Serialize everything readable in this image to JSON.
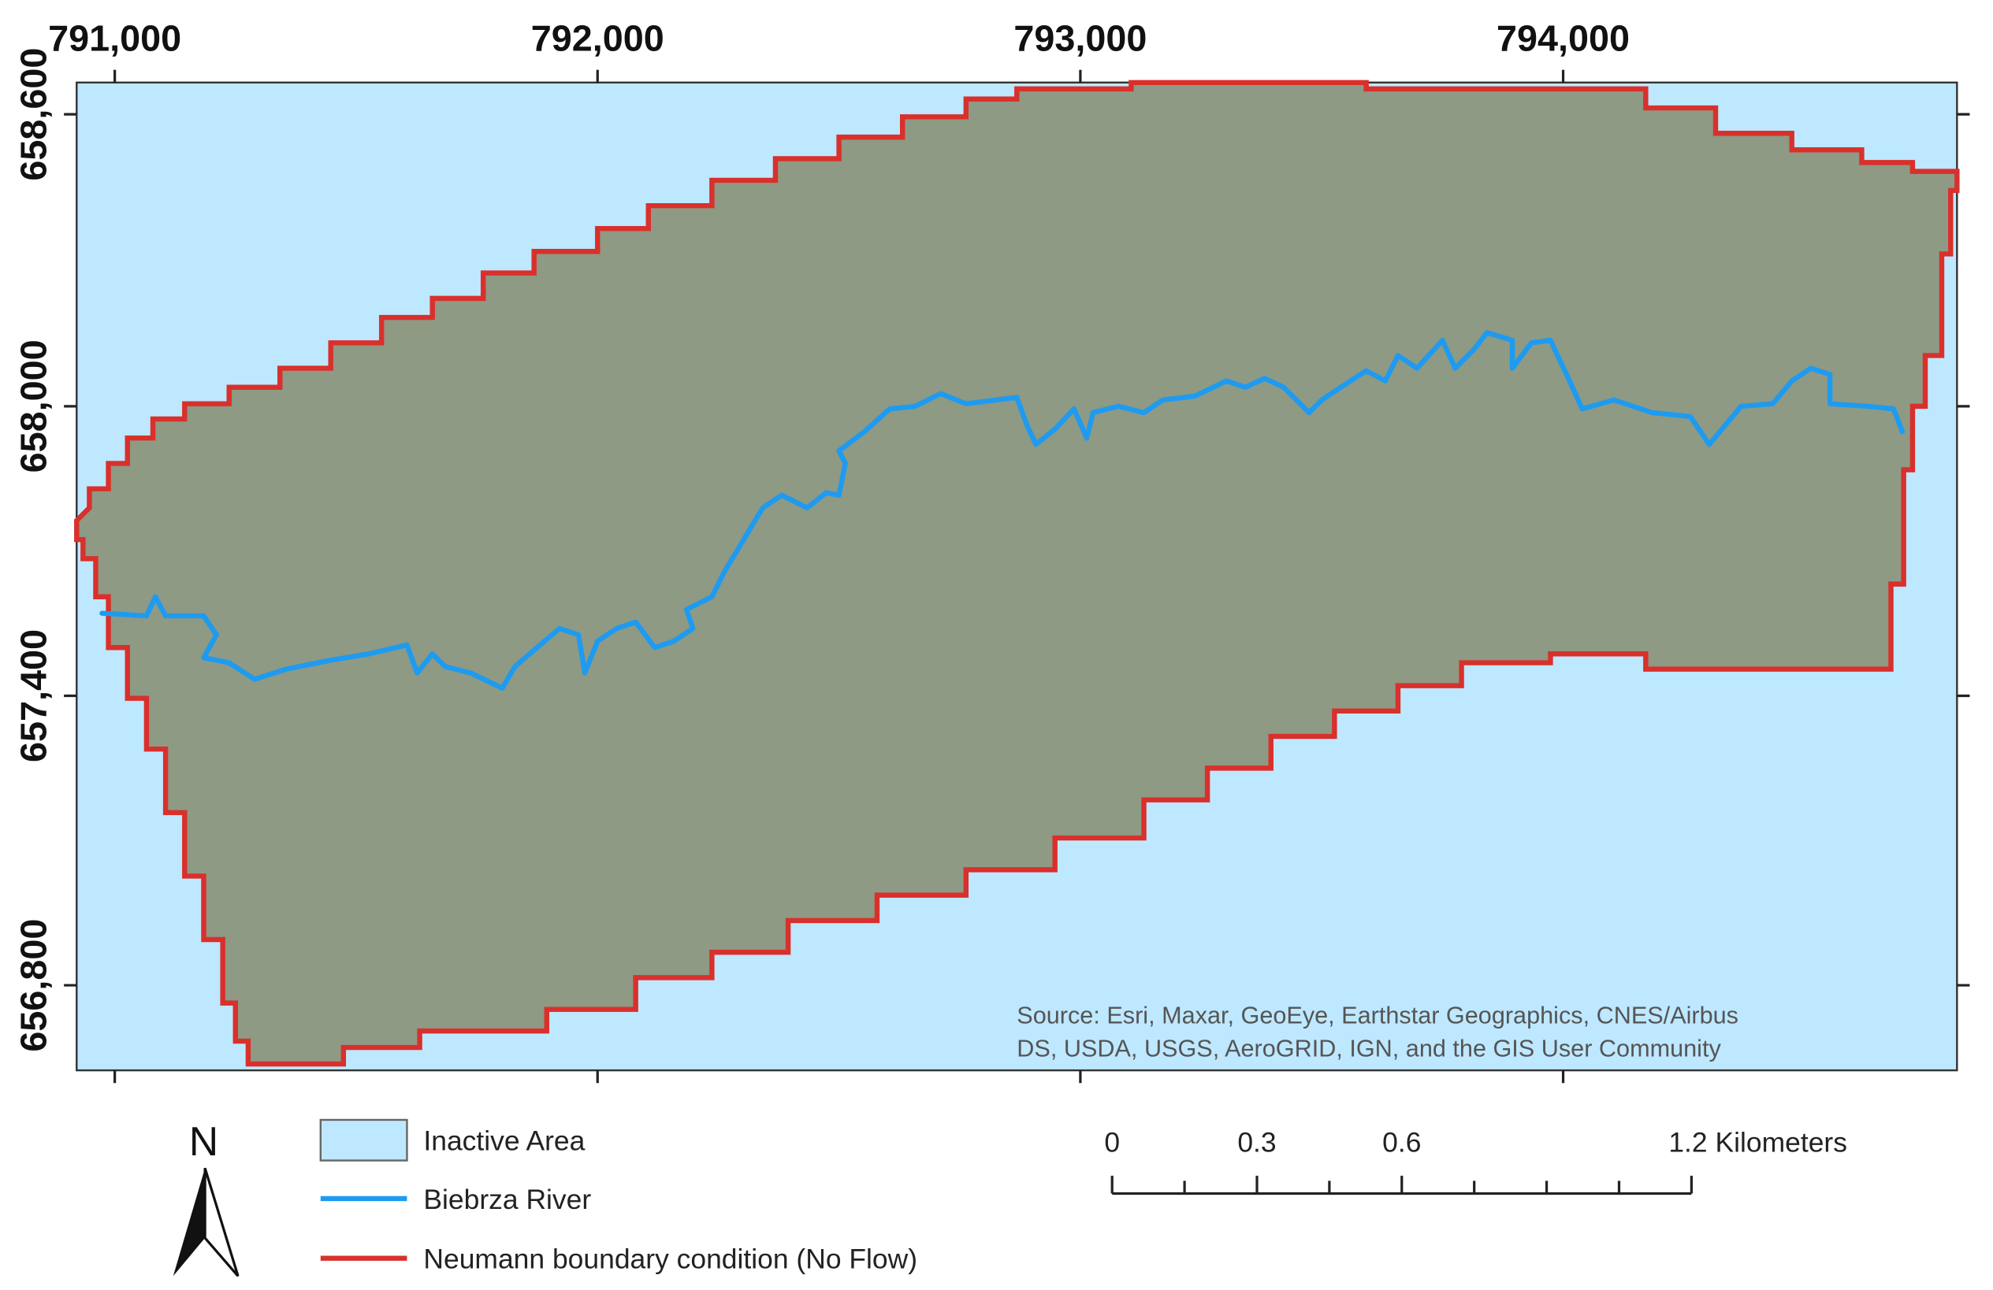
{
  "map": {
    "x_ticks": [
      "791,000",
      "792,000",
      "793,000",
      "794,000"
    ],
    "y_ticks": [
      "658,600",
      "658,000",
      "657,400",
      "656,800"
    ],
    "attribution": [
      "Source: Esri, Maxar, GeoEye, Earthstar Geographics, CNES/Airbus",
      "DS, USDA, USGS, AeroGRID, IGN, and the GIS User Community"
    ]
  },
  "north_arrow": "N",
  "legend": {
    "items": [
      "Inactive Area",
      "Biebrza River",
      "Neumann boundary condition (No Flow)"
    ]
  },
  "scale_bar": {
    "labels": [
      "0",
      "0.3",
      "0.6",
      "1.2 Kilometers"
    ]
  }
}
